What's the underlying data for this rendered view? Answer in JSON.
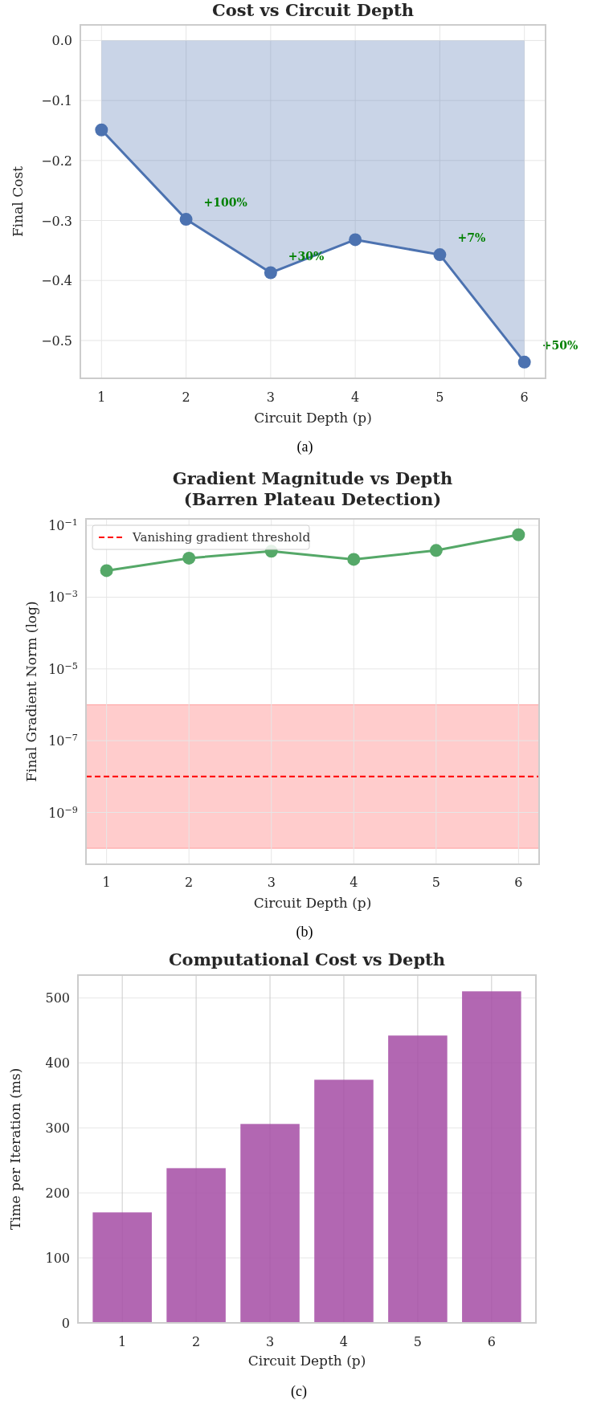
{
  "chart_data": [
    {
      "type": "area",
      "title": "Cost vs Circuit Depth",
      "xlabel": "Circuit Depth (p)",
      "ylabel": "Final Cost",
      "x": [
        1,
        2,
        3,
        4,
        5,
        6
      ],
      "series": [
        {
          "color": "#4c72b0",
          "values": [
            -0.149,
            -0.298,
            -0.387,
            -0.332,
            -0.357,
            -0.536
          ]
        }
      ],
      "xlim": [
        0.75,
        6.25
      ],
      "ylim": [
        -0.563,
        0.026
      ],
      "xticks": [
        1,
        2,
        3,
        4,
        5,
        6
      ],
      "yticks": [
        {
          "value": 0,
          "label": "0.0"
        },
        {
          "value": -0.1,
          "label": "−0.1"
        },
        {
          "value": -0.2,
          "label": "−0.2"
        },
        {
          "value": -0.3,
          "label": "−0.3"
        },
        {
          "value": -0.4,
          "label": "−0.4"
        },
        {
          "value": -0.5,
          "label": "−0.5"
        }
      ],
      "marker": "circle",
      "grid": true,
      "annotations": [
        {
          "text": "+100%",
          "x": 2,
          "y": -0.298
        },
        {
          "text": "+30%",
          "x": 3,
          "y": -0.387
        },
        {
          "text": "+7%",
          "x": 5,
          "y": -0.357
        },
        {
          "text": "+50%",
          "x": 6,
          "y": -0.536
        },
        "(a)"
      ]
    },
    {
      "type": "line",
      "title": "Gradient Magnitude vs Depth\n(Barren Plateau Detection)",
      "xlabel": "Circuit Depth (p)",
      "ylabel": "Final Gradient Norm (log)",
      "x": [
        1,
        2,
        3,
        4,
        5,
        6
      ],
      "series": [
        {
          "color": "#55a868",
          "values": [
            0.0055,
            0.0122,
            0.019,
            0.0113,
            0.02,
            0.055
          ]
        }
      ],
      "xlim": [
        0.75,
        6.25
      ],
      "ylim": [
        3.6e-11,
        0.152
      ],
      "xticks": [
        1,
        2,
        3,
        4,
        5,
        6
      ],
      "yticks": [
        {
          "value": 0.1,
          "label": "10$^{−1}$"
        },
        {
          "value": 0.001,
          "label": "10$^{−3}$"
        },
        {
          "value": 1e-05,
          "label": "10$^{−5}$"
        },
        {
          "value": 1e-07,
          "label": "10$^{−7}$"
        },
        {
          "value": 1e-09,
          "label": "10$^{−9}$"
        }
      ],
      "log": "y",
      "marker": "circle",
      "grid": true,
      "legend": "top left",
      "ref_lines": [
        {
          "axis": "y",
          "value": 1e-08,
          "label": "Vanishing gradient threshold",
          "color": "#ff0000",
          "line_style": "dashed"
        }
      ],
      "bands": [
        {
          "axis": "y",
          "from": 1e-10,
          "to": 1e-06,
          "color": "#ff0000"
        }
      ],
      "annotations": [
        "(b)"
      ]
    },
    {
      "type": "bar",
      "title": "Computational Cost vs Depth",
      "xlabel": "Circuit Depth (p)",
      "ylabel": "Time per Iteration (ms)",
      "categories": [
        "1",
        "2",
        "3",
        "4",
        "5",
        "6"
      ],
      "values": [
        170,
        238,
        306,
        374,
        442,
        510
      ],
      "color": "#a54ca4",
      "ylim": [
        0,
        535
      ],
      "yticks": [
        0,
        100,
        200,
        300,
        400,
        500
      ],
      "grid": true,
      "annotations": [
        "(c)"
      ]
    }
  ]
}
